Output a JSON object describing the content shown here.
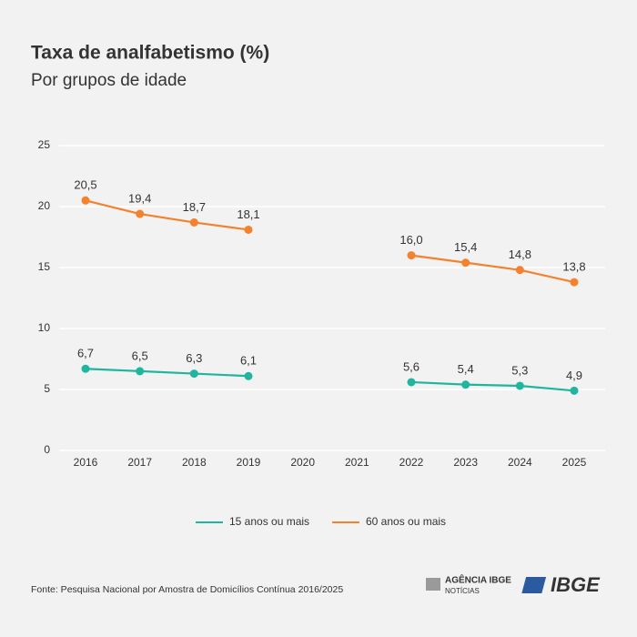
{
  "chart_data": {
    "type": "line",
    "title": "Taxa de analfabetismo (%)",
    "subtitle": "Por grupos de idade",
    "categories": [
      "2016",
      "2017",
      "2018",
      "2019",
      "2020",
      "2021",
      "2022",
      "2023",
      "2024",
      "2025"
    ],
    "series": [
      {
        "name": "15 anos ou mais",
        "color": "#1fb59f",
        "values": [
          6.7,
          6.5,
          6.3,
          6.1,
          null,
          null,
          5.6,
          5.4,
          5.3,
          4.9
        ],
        "value_labels": [
          "6,7",
          "6,5",
          "6,3",
          "6,1",
          null,
          null,
          "5,6",
          "5,4",
          "5,3",
          "4,9"
        ]
      },
      {
        "name": "60 anos ou mais",
        "color": "#f4812d",
        "values": [
          20.5,
          19.4,
          18.7,
          18.1,
          null,
          null,
          16.0,
          15.4,
          14.8,
          13.8
        ],
        "value_labels": [
          "20,5",
          "19,4",
          "18,7",
          "18,1",
          null,
          null,
          "16,0",
          "15,4",
          "14,8",
          "13,8"
        ]
      }
    ],
    "ylim": [
      0,
      25
    ],
    "yticks": [
      0,
      5,
      10,
      15,
      20,
      25
    ],
    "grid": true,
    "legend": "bottom",
    "source": "Fonte: Pesquisa Nacional por Amostra de Domicílios Contínua 2016/2025"
  },
  "logos": {
    "agencia": "AGÊNCIA IBGE",
    "noticias": "NOTÍCIAS",
    "ibge": "IBGE"
  }
}
